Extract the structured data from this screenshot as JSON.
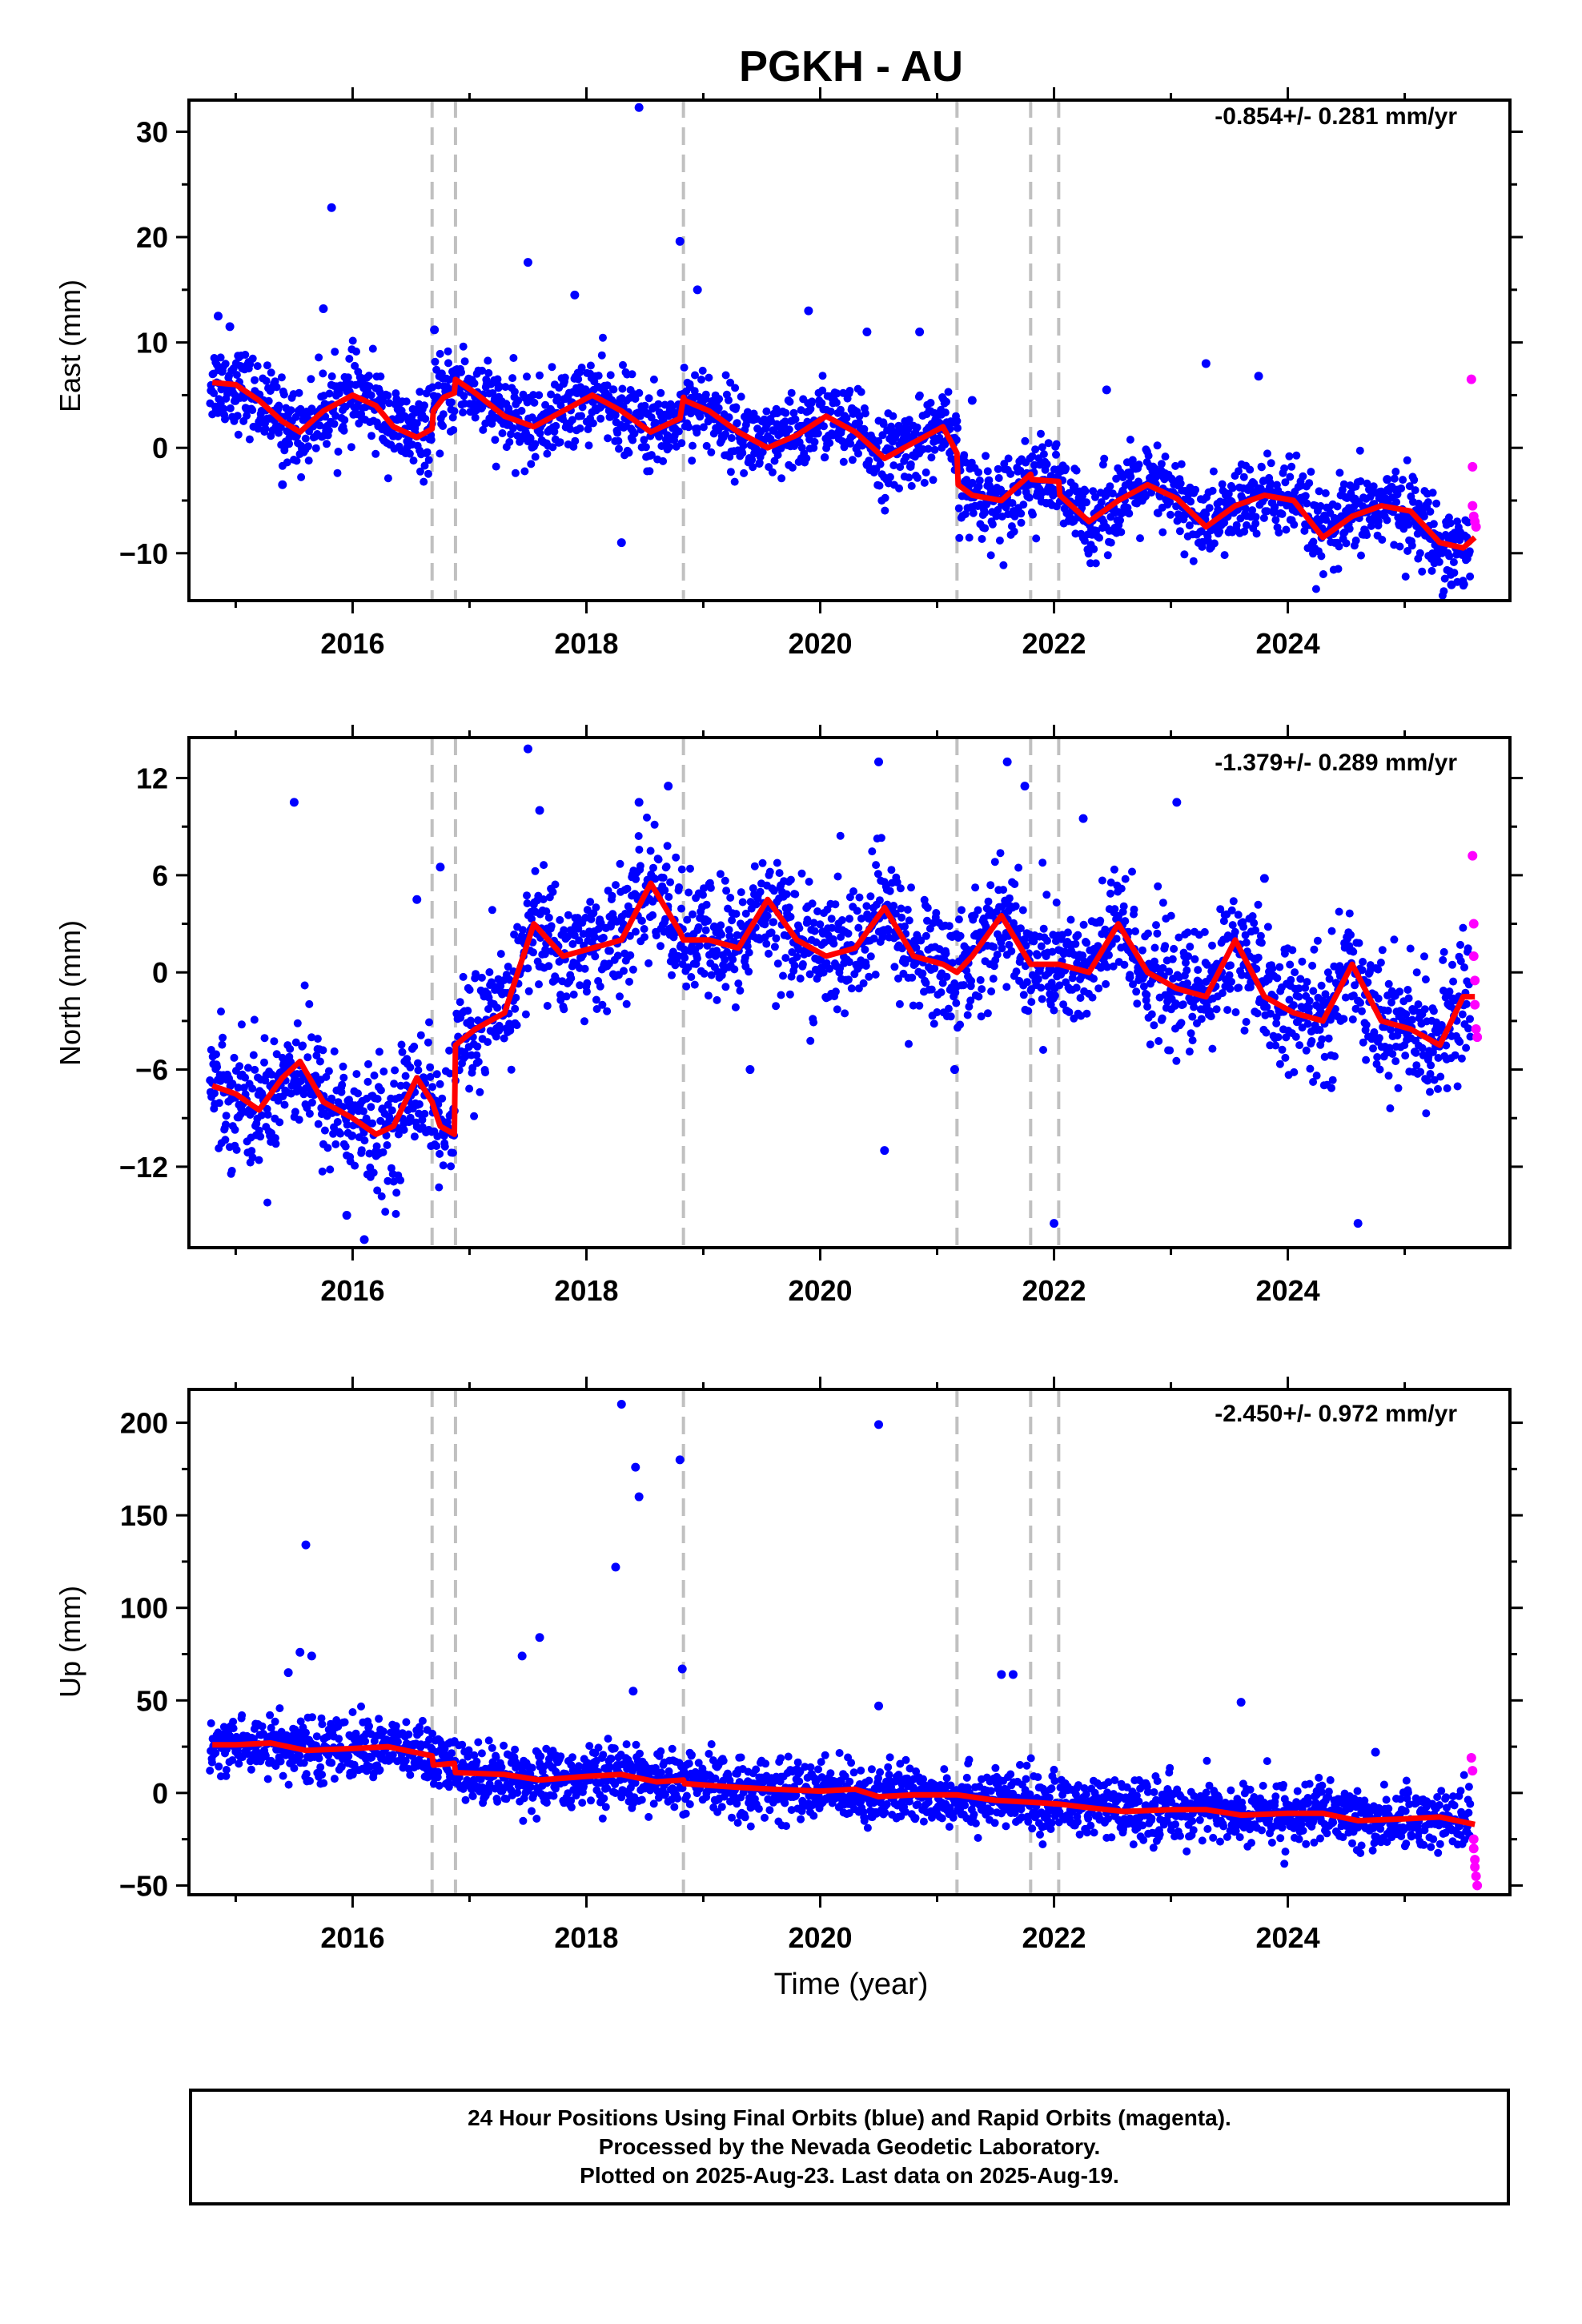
{
  "footer": {
    "line1": "24 Hour Positions Using Final Orbits (blue) and Rapid Orbits (magenta).",
    "line2": "Processed by the Nevada Geodetic Laboratory.",
    "line3": "Plotted on 2025-Aug-23. Last data on 2025-Aug-19."
  },
  "colors": {
    "final_points": "#0000ff",
    "rapid_points": "#ff00ff",
    "model_line": "#ff0000",
    "event_lines": "#c0c0c0"
  },
  "chart_data": [
    {
      "type": "scatter",
      "title": "PGKH - AU",
      "xlabel": "",
      "ylabel": "East (mm)",
      "rate": "-0.854+/- 0.281 mm/yr",
      "xlim": [
        2014.6,
        2025.9
      ],
      "ylim": [
        -14.5,
        33
      ],
      "xticks": [
        2016,
        2018,
        2020,
        2022,
        2024
      ],
      "yticks": [
        30,
        20,
        10,
        0,
        -10
      ],
      "grid": false,
      "event_lines_x": [
        2016.68,
        2016.88,
        2018.83,
        2021.17,
        2021.8,
        2022.04
      ],
      "series": [
        {
          "type": "line",
          "color": "#ff0000",
          "x": [
            2014.8,
            2015.0,
            2015.2,
            2015.4,
            2015.55,
            2015.75,
            2016.0,
            2016.2,
            2016.35,
            2016.55,
            2016.68,
            2016.69,
            2016.78,
            2016.87,
            2016.88,
            2017.05,
            2017.3,
            2017.55,
            2017.8,
            2018.05,
            2018.3,
            2018.55,
            2018.8,
            2018.83,
            2018.84,
            2019.05,
            2019.3,
            2019.55,
            2019.8,
            2020.05,
            2020.3,
            2020.55,
            2020.8,
            2021.05,
            2021.17,
            2021.18,
            2021.3,
            2021.55,
            2021.8,
            2021.81,
            2022.04,
            2022.05,
            2022.3,
            2022.55,
            2022.8,
            2023.05,
            2023.3,
            2023.55,
            2023.8,
            2024.05,
            2024.3,
            2024.55,
            2024.8,
            2025.05,
            2025.3,
            2025.5,
            2025.6
          ],
          "y": [
            6.2,
            6.0,
            4.5,
            2.5,
            1.5,
            3.5,
            5.0,
            4.0,
            2.0,
            1.0,
            1.8,
            3.5,
            4.8,
            5.2,
            6.5,
            5.2,
            3.0,
            2.0,
            3.5,
            5.0,
            3.5,
            1.5,
            2.8,
            4.8,
            4.5,
            3.5,
            1.5,
            0.0,
            1.2,
            3.0,
            1.5,
            -1.0,
            0.5,
            2.0,
            -0.5,
            -3.5,
            -4.5,
            -5.0,
            -2.5,
            -3.0,
            -3.2,
            -4.5,
            -7.0,
            -5.0,
            -3.5,
            -4.8,
            -7.5,
            -5.5,
            -4.5,
            -5.0,
            -8.5,
            -6.5,
            -5.5,
            -6.0,
            -9.0,
            -9.5,
            -8.5
          ]
        }
      ],
      "rapid_points": {
        "x": [
          2025.57,
          2025.58,
          2025.58,
          2025.59,
          2025.6,
          2025.61
        ],
        "y": [
          6.5,
          -1.8,
          -5.5,
          -6.5,
          -7.0,
          -7.5
        ]
      },
      "outliers": {
        "x": [
          2014.85,
          2014.95,
          2015.4,
          2015.75,
          2015.82,
          2016.7,
          2017.5,
          2017.9,
          2018.3,
          2018.45,
          2018.8,
          2018.95,
          2019.9,
          2020.4,
          2020.85,
          2021.3,
          2022.45,
          2023.3,
          2023.75,
          2024.85,
          2025.4
        ],
        "y": [
          12.5,
          11.5,
          -3.5,
          13.2,
          22.8,
          11.2,
          17.6,
          14.5,
          -9.0,
          32.3,
          19.6,
          15.0,
          13.0,
          11.0,
          11.0,
          4.5,
          5.5,
          8.0,
          6.8,
          -3.0,
          -13.0
        ]
      },
      "model_amp": 2.0
    },
    {
      "type": "scatter",
      "title": "",
      "xlabel": "",
      "ylabel": "North (mm)",
      "rate": "-1.379+/- 0.289 mm/yr",
      "xlim": [
        2014.6,
        2025.9
      ],
      "ylim": [
        -17,
        14.5
      ],
      "xticks": [
        2016,
        2018,
        2020,
        2022,
        2024
      ],
      "yticks": [
        12,
        6,
        0,
        -6,
        -12
      ],
      "grid": false,
      "event_lines_x": [
        2016.68,
        2016.88,
        2018.83,
        2021.17,
        2021.8,
        2022.04
      ],
      "series": [
        {
          "type": "line",
          "color": "#ff0000",
          "x": [
            2014.8,
            2015.0,
            2015.2,
            2015.4,
            2015.55,
            2015.75,
            2016.0,
            2016.2,
            2016.35,
            2016.55,
            2016.68,
            2016.75,
            2016.87,
            2016.88,
            2017.05,
            2017.3,
            2017.55,
            2017.8,
            2018.05,
            2018.3,
            2018.55,
            2018.8,
            2018.83,
            2019.05,
            2019.3,
            2019.55,
            2019.8,
            2020.05,
            2020.3,
            2020.55,
            2020.8,
            2021.05,
            2021.17,
            2021.3,
            2021.55,
            2021.8,
            2022.04,
            2022.3,
            2022.55,
            2022.8,
            2023.05,
            2023.3,
            2023.55,
            2023.8,
            2024.05,
            2024.3,
            2024.55,
            2024.8,
            2025.05,
            2025.3,
            2025.5,
            2025.6
          ],
          "y": [
            -7.0,
            -7.5,
            -8.5,
            -6.5,
            -5.5,
            -8.0,
            -9.0,
            -10.0,
            -9.5,
            -6.5,
            -8.0,
            -9.5,
            -10.0,
            -4.5,
            -3.5,
            -2.5,
            3.0,
            1.0,
            1.5,
            2.0,
            5.5,
            2.5,
            2.0,
            2.0,
            1.5,
            4.5,
            2.0,
            1.0,
            1.5,
            4.0,
            1.0,
            0.5,
            0.0,
            1.0,
            3.5,
            0.5,
            0.5,
            0.0,
            3.0,
            0.0,
            -1.0,
            -1.5,
            2.0,
            -1.5,
            -2.5,
            -3.0,
            0.5,
            -3.0,
            -3.5,
            -4.5,
            -1.5,
            -1.5
          ]
        }
      ],
      "rapid_points": {
        "x": [
          2025.58,
          2025.59,
          2025.59,
          2025.6,
          2025.6,
          2025.61,
          2025.62
        ],
        "y": [
          7.2,
          3.0,
          1.0,
          -0.5,
          -2.0,
          -3.5,
          -4.0
        ]
      },
      "outliers": {
        "x": [
          2015.5,
          2015.95,
          2016.1,
          2016.55,
          2016.75,
          2017.5,
          2017.6,
          2018.45,
          2018.7,
          2019.4,
          2020.5,
          2020.55,
          2021.15,
          2021.6,
          2021.75,
          2022.0,
          2022.25,
          2023.05,
          2023.8,
          2024.6
        ],
        "y": [
          10.5,
          -15.0,
          -16.5,
          4.5,
          6.5,
          13.8,
          10.0,
          10.5,
          11.5,
          -6.0,
          13.0,
          -11.0,
          -6.0,
          13.0,
          11.5,
          -15.5,
          9.5,
          10.5,
          5.8,
          -15.5
        ]
      },
      "model_amp": 2.2
    },
    {
      "type": "scatter",
      "title": "",
      "xlabel": "Time (year)",
      "ylabel": "Up (mm)",
      "rate": "-2.450+/- 0.972 mm/yr",
      "xlim": [
        2014.6,
        2025.9
      ],
      "ylim": [
        -55,
        218
      ],
      "xticks": [
        2016,
        2018,
        2020,
        2022,
        2024
      ],
      "yticks": [
        200,
        150,
        100,
        50,
        0,
        -50
      ],
      "grid": false,
      "event_lines_x": [
        2016.68,
        2016.88,
        2018.83,
        2021.17,
        2021.8,
        2022.04
      ],
      "series": [
        {
          "type": "line",
          "color": "#ff0000",
          "x": [
            2014.8,
            2015.0,
            2015.3,
            2015.6,
            2016.0,
            2016.3,
            2016.68,
            2016.69,
            2016.87,
            2016.88,
            2017.3,
            2017.6,
            2018.0,
            2018.3,
            2018.6,
            2018.83,
            2018.84,
            2019.3,
            2019.6,
            2020.0,
            2020.3,
            2020.5,
            2020.8,
            2021.17,
            2021.5,
            2021.8,
            2022.04,
            2022.3,
            2022.6,
            2023.0,
            2023.3,
            2023.6,
            2024.0,
            2024.3,
            2024.6,
            2025.0,
            2025.3,
            2025.6
          ],
          "y": [
            26,
            26,
            27,
            23,
            24,
            25,
            20,
            15,
            16,
            11,
            10,
            7,
            9,
            10,
            6,
            7,
            5,
            3,
            2,
            1,
            2,
            -2,
            -1,
            -1,
            -4,
            -5,
            -6,
            -8,
            -10,
            -9,
            -9,
            -12,
            -11,
            -11,
            -15,
            -14,
            -13,
            -17
          ]
        }
      ],
      "rapid_points": {
        "x": [
          2025.57,
          2025.58,
          2025.59,
          2025.59,
          2025.6,
          2025.6,
          2025.61,
          2025.62
        ],
        "y": [
          19,
          12,
          -25,
          -30,
          -36,
          -40,
          -45,
          -50
        ]
      },
      "outliers": {
        "x": [
          2015.45,
          2015.55,
          2015.6,
          2015.65,
          2017.45,
          2017.6,
          2018.25,
          2018.3,
          2018.4,
          2018.42,
          2018.45,
          2018.8,
          2018.82,
          2020.5,
          2020.5,
          2021.55,
          2021.65,
          2023.6,
          2024.75
        ],
        "y": [
          65,
          76,
          134,
          74,
          74,
          84,
          122,
          210,
          55,
          176,
          160,
          180,
          67,
          199,
          47,
          64,
          64,
          49,
          22
        ]
      },
      "model_amp": 0
    }
  ]
}
